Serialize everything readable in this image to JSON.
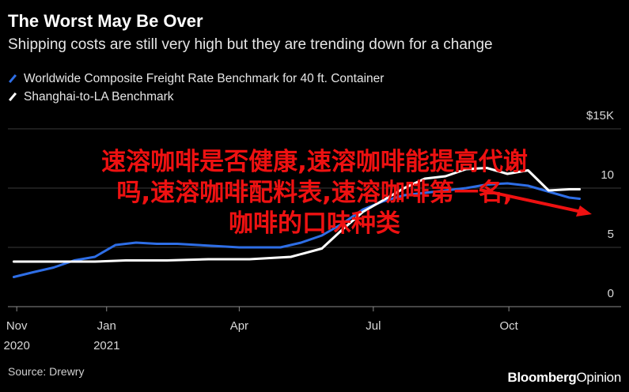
{
  "header": {
    "title": "The Worst May Be Over",
    "subtitle": "Shipping costs are still very high but they are trending down for a change"
  },
  "legend": [
    {
      "label": "Worldwide Composite Freight Rate Benchmark for 40 ft. Container",
      "color": "#2e6ee6"
    },
    {
      "label": "Shanghai-to-LA Benchmark",
      "color": "#ffffff"
    }
  ],
  "footer": {
    "source": "Source: Drewry",
    "brand_bold": "Bloomberg",
    "brand_light": "Opinion"
  },
  "overlay": {
    "lines": [
      "速溶咖啡是否健康,速溶咖啡能提高代谢",
      "吗,速溶咖啡配料表,速溶咖啡第一名,",
      "咖啡的口味种类"
    ],
    "color": "#ee1111"
  },
  "chart_data": {
    "type": "line",
    "title": "The Worst May Be Over",
    "subtitle": "Shipping costs are still very high but they are trending down for a change",
    "ylim": [
      0,
      15
    ],
    "yticks": [
      {
        "value": 15,
        "label": "$15K"
      },
      {
        "value": 10,
        "label": "10"
      },
      {
        "value": 5,
        "label": "5"
      },
      {
        "value": 0,
        "label": "0"
      }
    ],
    "xlim": [
      "2020-10-26",
      "2021-11-22"
    ],
    "xticks": [
      {
        "date": "2020-11-01",
        "label": "Nov",
        "label2": "2020"
      },
      {
        "date": "2021-01-01",
        "label": "Jan",
        "label2": "2021"
      },
      {
        "date": "2021-04-01",
        "label": "Apr",
        "label2": ""
      },
      {
        "date": "2021-07-01",
        "label": "Jul",
        "label2": ""
      },
      {
        "date": "2021-10-01",
        "label": "Oct",
        "label2": ""
      }
    ],
    "grid": true,
    "series": [
      {
        "name": "Worldwide Composite Freight Rate Benchmark for 40 ft. Container",
        "color": "#2e6ee6",
        "points": [
          [
            "2020-10-30",
            2.5
          ],
          [
            "2020-11-12",
            2.9
          ],
          [
            "2020-11-26",
            3.3
          ],
          [
            "2020-12-10",
            3.9
          ],
          [
            "2020-12-24",
            4.2
          ],
          [
            "2021-01-07",
            5.2
          ],
          [
            "2021-01-21",
            5.4
          ],
          [
            "2021-02-04",
            5.3
          ],
          [
            "2021-02-18",
            5.3
          ],
          [
            "2021-03-04",
            5.2
          ],
          [
            "2021-03-18",
            5.1
          ],
          [
            "2021-04-01",
            5.0
          ],
          [
            "2021-04-15",
            5.0
          ],
          [
            "2021-04-29",
            5.0
          ],
          [
            "2021-05-13",
            5.4
          ],
          [
            "2021-05-27",
            6.0
          ],
          [
            "2021-06-10",
            7.0
          ],
          [
            "2021-06-24",
            8.2
          ],
          [
            "2021-07-08",
            8.9
          ],
          [
            "2021-07-22",
            9.4
          ],
          [
            "2021-08-05",
            9.6
          ],
          [
            "2021-08-19",
            9.8
          ],
          [
            "2021-09-02",
            10.0
          ],
          [
            "2021-09-16",
            10.3
          ],
          [
            "2021-09-30",
            10.4
          ],
          [
            "2021-10-14",
            10.2
          ],
          [
            "2021-10-28",
            9.7
          ],
          [
            "2021-11-11",
            9.2
          ],
          [
            "2021-11-18",
            9.1
          ]
        ]
      },
      {
        "name": "Shanghai-to-LA Benchmark",
        "color": "#ffffff",
        "points": [
          [
            "2020-10-30",
            3.8
          ],
          [
            "2020-11-26",
            3.8
          ],
          [
            "2020-12-24",
            3.8
          ],
          [
            "2021-01-14",
            3.9
          ],
          [
            "2021-02-11",
            3.9
          ],
          [
            "2021-03-11",
            4.0
          ],
          [
            "2021-04-08",
            4.0
          ],
          [
            "2021-05-06",
            4.2
          ],
          [
            "2021-05-27",
            4.9
          ],
          [
            "2021-06-10",
            6.5
          ],
          [
            "2021-06-24",
            8.0
          ],
          [
            "2021-07-08",
            9.0
          ],
          [
            "2021-07-22",
            10.0
          ],
          [
            "2021-08-05",
            10.8
          ],
          [
            "2021-08-19",
            11.0
          ],
          [
            "2021-09-02",
            11.6
          ],
          [
            "2021-09-16",
            11.7
          ],
          [
            "2021-09-30",
            11.2
          ],
          [
            "2021-10-14",
            11.5
          ],
          [
            "2021-10-28",
            9.8
          ],
          [
            "2021-11-11",
            9.9
          ],
          [
            "2021-11-18",
            9.9
          ]
        ]
      }
    ]
  }
}
